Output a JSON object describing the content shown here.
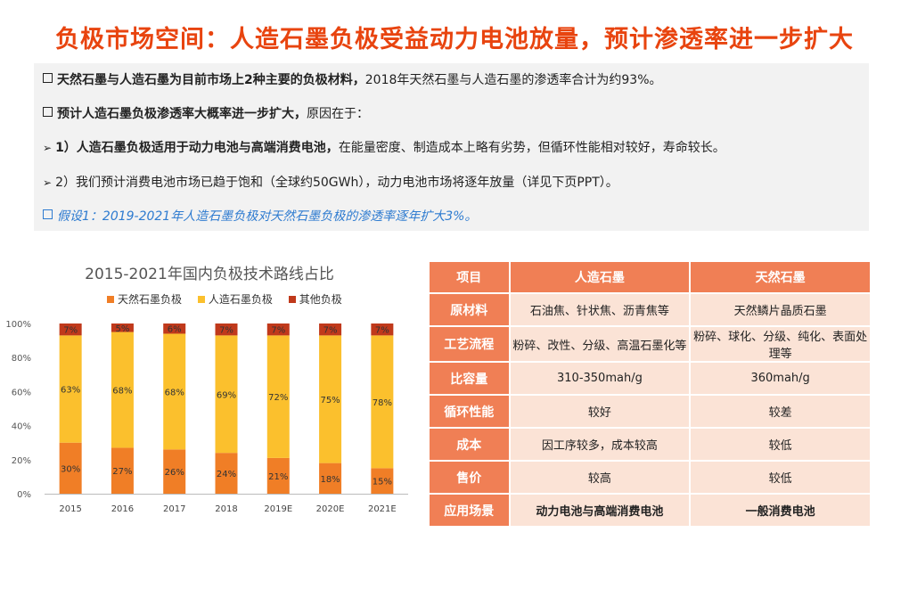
{
  "title": "负极市场空间：人造石墨负极受益动力电池放量，预计渗透率进一步扩大",
  "bullets": {
    "b1_bold": "天然石墨与人造石墨为目前市场上2种主要的负极材料，",
    "b1_text": "2018年天然石墨与人造石墨的渗透率合计为约93%。",
    "b2_bold": "预计人造石墨负极渗透率大概率进一步扩大，",
    "b2_text": "原因在于：",
    "b3_bold": "1）人造石墨负极适用于动力电池与高端消费电池，",
    "b3_text": "在能量密度、制造成本上略有劣势，但循环性能相对较好，寿命较长。",
    "b4_text": "2）我们预计消费电池市场已趋于饱和（全球约50GWh），动力电池市场将逐年放量（详见下页PPT）。",
    "b5_text": "假设1：2019-2021年人造石墨负极对天然石墨负极的渗透率逐年扩大3%。"
  },
  "colors": {
    "accent": "#e8440f",
    "natural": "#f07e26",
    "artificial": "#fbc02d",
    "other": "#c0391b",
    "table_header": "#f07f55",
    "table_cell": "#fbe3d6",
    "highlight_blue": "#2e7bd0"
  },
  "chart_data": {
    "type": "bar",
    "stacked": true,
    "title": "2015-2021年国内负极技术路线占比",
    "categories": [
      "2015",
      "2016",
      "2017",
      "2018",
      "2019E",
      "2020E",
      "2021E"
    ],
    "series": [
      {
        "name": "天然石墨负极",
        "values": [
          30,
          27,
          26,
          24,
          21,
          18,
          15
        ],
        "color": "#f07e26"
      },
      {
        "name": "人造石墨负极",
        "values": [
          63,
          68,
          68,
          69,
          72,
          75,
          78
        ],
        "color": "#fbc02d"
      },
      {
        "name": "其他负极",
        "values": [
          7,
          5,
          6,
          7,
          7,
          7,
          7
        ],
        "color": "#c0391b"
      }
    ],
    "yticks": [
      "0%",
      "20%",
      "40%",
      "60%",
      "80%",
      "100%"
    ],
    "ylim": [
      0,
      100
    ],
    "legend": "top"
  },
  "table": {
    "headers": [
      "项目",
      "人造石墨",
      "天然石墨"
    ],
    "rows": [
      {
        "label": "原材料",
        "a": "石油焦、针状焦、沥青焦等",
        "b": "天然鳞片晶质石墨",
        "bold": false
      },
      {
        "label": "工艺流程",
        "a": "粉碎、改性、分级、高温石墨化等",
        "b": "粉碎、球化、分级、纯化、表面处理等",
        "bold": false
      },
      {
        "label": "比容量",
        "a": "310-350mah/g",
        "b": "360mah/g",
        "bold": false
      },
      {
        "label": "循环性能",
        "a": "较好",
        "b": "较差",
        "bold": false
      },
      {
        "label": "成本",
        "a": "因工序较多，成本较高",
        "b": "较低",
        "bold": false
      },
      {
        "label": "售价",
        "a": "较高",
        "b": "较低",
        "bold": false
      },
      {
        "label": "应用场景",
        "a": "动力电池与高端消费电池",
        "b": "一般消费电池",
        "bold": true
      }
    ]
  }
}
